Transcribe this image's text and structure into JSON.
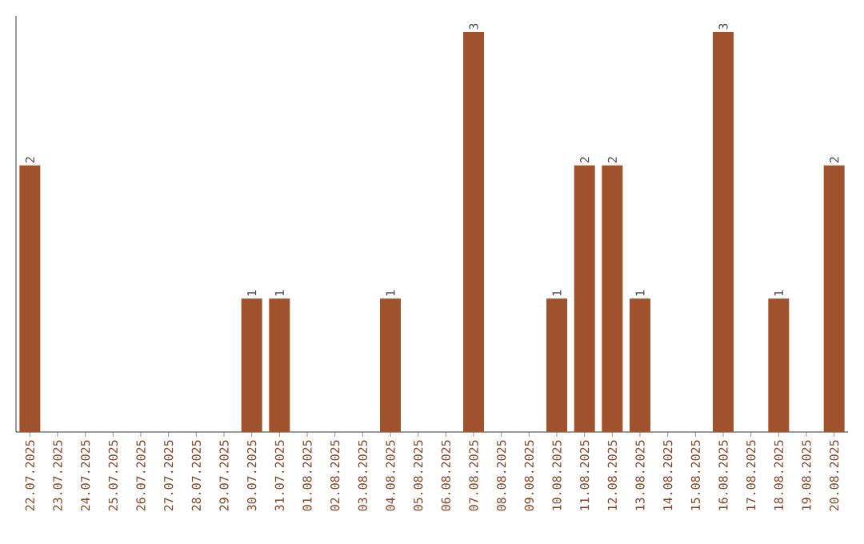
{
  "chart_data": {
    "type": "bar",
    "color": "#a0522d",
    "categories": [
      "22.07.2025",
      "23.07.2025",
      "24.07.2025",
      "25.07.2025",
      "26.07.2025",
      "27.07.2025",
      "28.07.2025",
      "29.07.2025",
      "30.07.2025",
      "31.07.2025",
      "01.08.2025",
      "02.08.2025",
      "03.08.2025",
      "04.08.2025",
      "05.08.2025",
      "06.08.2025",
      "07.08.2025",
      "08.08.2025",
      "09.08.2025",
      "10.08.2025",
      "11.08.2025",
      "12.08.2025",
      "13.08.2025",
      "14.08.2025",
      "15.08.2025",
      "16.08.2025",
      "17.08.2025",
      "18.08.2025",
      "19.08.2025",
      "20.08.2025"
    ],
    "values": [
      2,
      0,
      0,
      0,
      0,
      0,
      0,
      0,
      1,
      1,
      0,
      0,
      0,
      1,
      0,
      0,
      3,
      0,
      0,
      1,
      2,
      2,
      1,
      0,
      0,
      3,
      0,
      1,
      0,
      2
    ],
    "value_labels": [
      "2",
      null,
      null,
      null,
      null,
      null,
      null,
      null,
      "1",
      "1",
      null,
      null,
      null,
      "1",
      null,
      null,
      "3",
      null,
      null,
      "1",
      "2",
      "2",
      "1",
      null,
      null,
      "3",
      null,
      "1",
      null,
      "2"
    ],
    "relative": false
  }
}
